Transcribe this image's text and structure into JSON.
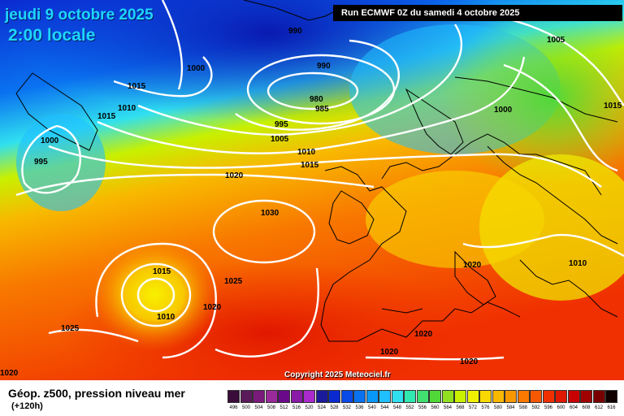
{
  "map": {
    "date_label": "jeudi 9 octobre 2025",
    "time_label": "2:00 locale",
    "run_label": "Run ECMWF 0Z du samedi 4 octobre 2025",
    "copyright": "Copyright 2025 Meteociel.fr",
    "pressure_labels": [
      "990",
      "990",
      "1000",
      "1015",
      "1010",
      "1015",
      "1000",
      "995",
      "980",
      "985",
      "995",
      "1005",
      "1010",
      "1015",
      "1020",
      "1030",
      "1015",
      "1025",
      "1010",
      "1020",
      "1025",
      "1005",
      "1000",
      "1015",
      "1020",
      "1010",
      "1020",
      "1020",
      "1020",
      "1020"
    ]
  },
  "legend": {
    "title": "Géop. z500, pression niveau mer",
    "subtitle": "(+120h)",
    "scale": [
      {
        "label": "496",
        "color": "#3a0c3a"
      },
      {
        "label": "500",
        "color": "#5a1a5a"
      },
      {
        "label": "504",
        "color": "#7a1a7a"
      },
      {
        "label": "508",
        "color": "#9a2a9a"
      },
      {
        "label": "512",
        "color": "#6a0a8a"
      },
      {
        "label": "516",
        "color": "#8a1aa8"
      },
      {
        "label": "520",
        "color": "#aa2acc"
      },
      {
        "label": "524",
        "color": "#1a1a9a"
      },
      {
        "label": "528",
        "color": "#0a2ad0"
      },
      {
        "label": "532",
        "color": "#0a4ae8"
      },
      {
        "label": "536",
        "color": "#0a72f0"
      },
      {
        "label": "540",
        "color": "#0a98f8"
      },
      {
        "label": "544",
        "color": "#20c0ff"
      },
      {
        "label": "548",
        "color": "#30e0f0"
      },
      {
        "label": "552",
        "color": "#30e8b0"
      },
      {
        "label": "556",
        "color": "#40e070"
      },
      {
        "label": "560",
        "color": "#50d838"
      },
      {
        "label": "564",
        "color": "#90e020"
      },
      {
        "label": "568",
        "color": "#c8f000"
      },
      {
        "label": "572",
        "color": "#f0f000"
      },
      {
        "label": "576",
        "color": "#f8d800"
      },
      {
        "label": "580",
        "color": "#f8b800"
      },
      {
        "label": "584",
        "color": "#f89800"
      },
      {
        "label": "588",
        "color": "#f87800"
      },
      {
        "label": "592",
        "color": "#f85800"
      },
      {
        "label": "596",
        "color": "#f03000"
      },
      {
        "label": "600",
        "color": "#e01800"
      },
      {
        "label": "604",
        "color": "#c80000"
      },
      {
        "label": "608",
        "color": "#a00000"
      },
      {
        "label": "612",
        "color": "#780000"
      },
      {
        "label": "616",
        "color": "#100000"
      }
    ]
  }
}
